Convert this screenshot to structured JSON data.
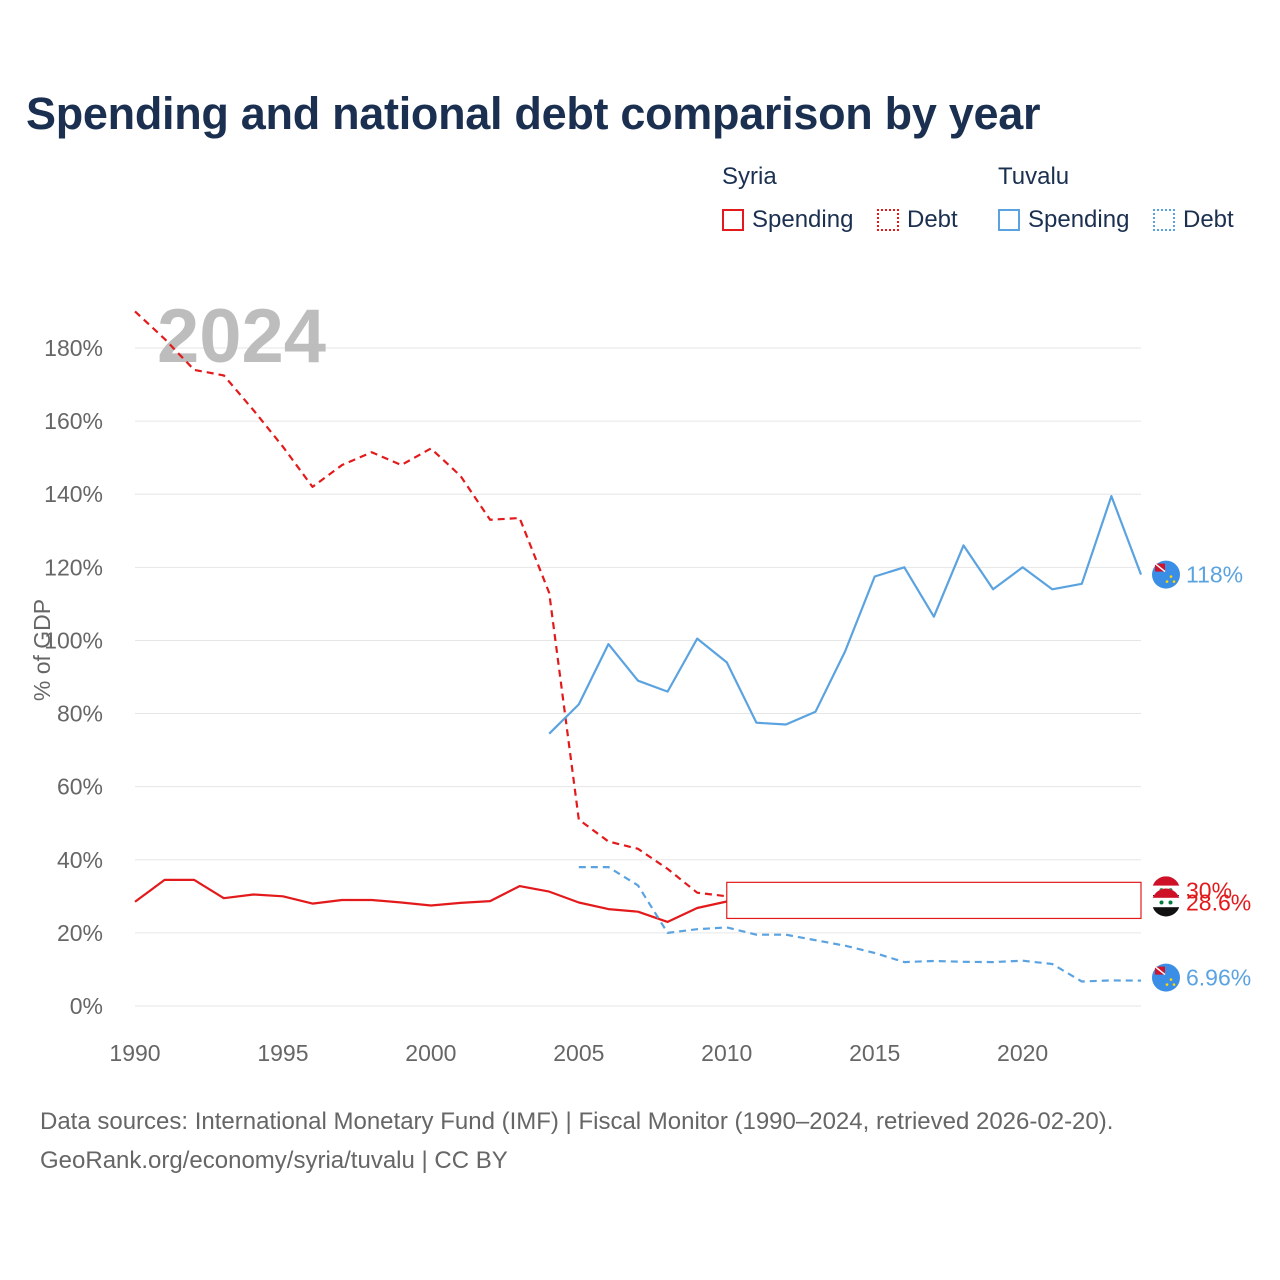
{
  "title": "Spending and national debt comparison by year",
  "legend": {
    "groups": [
      {
        "country": "Syria",
        "items": [
          {
            "label": "Spending",
            "style": "solid",
            "color": "#e31a1c"
          },
          {
            "label": "Debt",
            "style": "dotted",
            "color": "#e31a1c"
          }
        ]
      },
      {
        "country": "Tuvalu",
        "items": [
          {
            "label": "Spending",
            "style": "solid",
            "color": "#5ba3e0"
          },
          {
            "label": "Debt",
            "style": "dotted",
            "color": "#5ba3e0"
          }
        ]
      }
    ]
  },
  "chart_data": {
    "type": "line",
    "year_watermark": "2024",
    "ylabel": "% of GDP",
    "xlabel": "",
    "xlim": [
      1990,
      2024
    ],
    "ylim": [
      0,
      190
    ],
    "x_ticks": [
      1990,
      1995,
      2000,
      2005,
      2010,
      2015,
      2020
    ],
    "y_ticks": [
      0,
      20,
      40,
      60,
      80,
      100,
      120,
      140,
      160,
      180
    ],
    "y_tick_labels": [
      "0%",
      "20%",
      "40%",
      "60%",
      "80%",
      "100%",
      "120%",
      "140%",
      "160%",
      "180%"
    ],
    "grid": true,
    "series": [
      {
        "name": "Syria Debt",
        "country": "Syria",
        "metric": "Debt",
        "color": "#e31a1c",
        "dash": true,
        "x": [
          1990,
          1991,
          1992,
          1993,
          1994,
          1995,
          1996,
          1997,
          1998,
          1999,
          2000,
          2001,
          2002,
          2003,
          2004,
          2005,
          2006,
          2007,
          2008,
          2009,
          2010
        ],
        "y": [
          190,
          182.5,
          174,
          172.5,
          163,
          153,
          142,
          148,
          151.5,
          148,
          152.5,
          145,
          133,
          133.5,
          113,
          51,
          45,
          43,
          37.5,
          31,
          30
        ]
      },
      {
        "name": "Syria Spending",
        "country": "Syria",
        "metric": "Spending",
        "color": "#e31a1c",
        "dash": false,
        "x": [
          1990,
          1991,
          1992,
          1993,
          1994,
          1995,
          1996,
          1997,
          1998,
          1999,
          2000,
          2001,
          2002,
          2003,
          2004,
          2005,
          2006,
          2007,
          2008,
          2009,
          2010
        ],
        "y": [
          28.5,
          34.5,
          34.5,
          29.5,
          30.5,
          30,
          28,
          29,
          29,
          28.3,
          27.5,
          28.2,
          28.7,
          32.8,
          31.3,
          28.3,
          26.5,
          25.8,
          23,
          26.8,
          28.6
        ]
      },
      {
        "name": "Tuvalu Spending",
        "country": "Tuvalu",
        "metric": "Spending",
        "color": "#5ba3e0",
        "dash": false,
        "x": [
          2004,
          2005,
          2006,
          2007,
          2008,
          2009,
          2010,
          2011,
          2012,
          2013,
          2014,
          2015,
          2016,
          2017,
          2018,
          2019,
          2020,
          2021,
          2022,
          2023,
          2024
        ],
        "y": [
          74.5,
          82.5,
          99,
          89,
          86,
          100.5,
          94,
          77.5,
          77,
          80.5,
          97,
          117.5,
          120,
          106.5,
          126,
          114,
          120,
          114,
          115.5,
          139.5,
          118
        ]
      },
      {
        "name": "Tuvalu Debt",
        "country": "Tuvalu",
        "metric": "Debt",
        "color": "#5ba3e0",
        "dash": true,
        "x": [
          2005,
          2006,
          2007,
          2008,
          2009,
          2010,
          2011,
          2012,
          2013,
          2014,
          2015,
          2016,
          2017,
          2018,
          2019,
          2020,
          2021,
          2022,
          2023,
          2024
        ],
        "y": [
          38,
          38,
          33,
          20,
          21,
          21.5,
          19.5,
          19.5,
          18,
          16.5,
          14.5,
          12,
          12.3,
          12.1,
          12,
          12.4,
          11.5,
          6.7,
          7,
          6.96
        ]
      }
    ],
    "end_labels": [
      {
        "label": "118%",
        "country": "Tuvalu",
        "value": 118,
        "color": "#5ba3e0"
      },
      {
        "label": "30%",
        "country": "Syria",
        "value": 30,
        "color": "#e31a1c"
      },
      {
        "label": "28.6%",
        "country": "Syria",
        "value": 28.6,
        "color": "#e31a1c"
      },
      {
        "label": "6.96%",
        "country": "Tuvalu",
        "value": 6.96,
        "color": "#5ba3e0"
      }
    ]
  },
  "footer": {
    "line1": "Data sources: International Monetary Fund (IMF) | Fiscal Monitor (1990–2024, retrieved 2026-02-20).",
    "line2": "GeoRank.org/economy/syria/tuvalu | CC BY"
  }
}
